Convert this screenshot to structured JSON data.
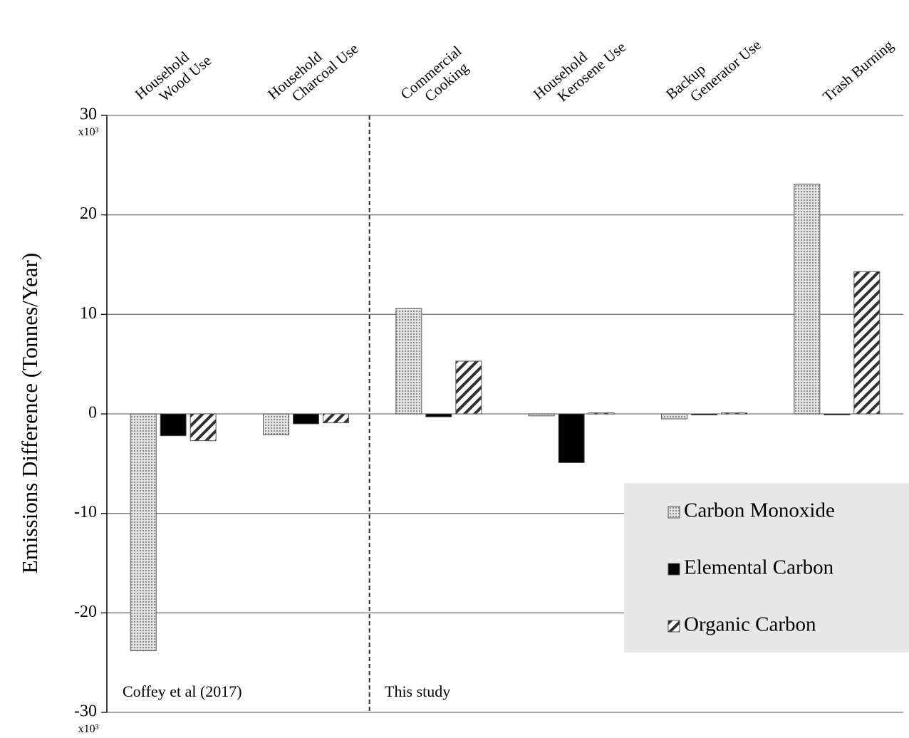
{
  "chart_data": {
    "type": "bar",
    "ylabel": "Emissions Difference  (Tonnes/Year)",
    "categories": [
      "Household\nWood Use",
      "Household\nCharcoal Use",
      "Commercial\nCooking",
      "Household\nKerosene Use",
      "Backup\nGenerator Use",
      "Trash Burning"
    ],
    "series": [
      {
        "name": "Carbon Monoxide",
        "color": "#c8c8c8",
        "values": [
          -23.8,
          -2.1,
          10.6,
          -0.2,
          -0.5,
          23.1
        ]
      },
      {
        "name": "Elemental Carbon",
        "color": "#000000",
        "values": [
          -2.2,
          -1.0,
          -0.3,
          -4.9,
          -0.1,
          -0.1
        ]
      },
      {
        "name": "Organic Carbon",
        "color": "#303030",
        "values": [
          -2.7,
          -0.9,
          5.3,
          0.1,
          0.1,
          14.3
        ]
      }
    ],
    "ylim": [
      -30,
      30
    ],
    "yticks": [
      30,
      20,
      10,
      0,
      -10,
      -20,
      -30
    ],
    "axis_multiplier": [
      "x10³",
      "x10³"
    ],
    "annotations": [
      "Coffey et al (2017)",
      "This study"
    ],
    "grid": true,
    "legend": "lower right"
  }
}
